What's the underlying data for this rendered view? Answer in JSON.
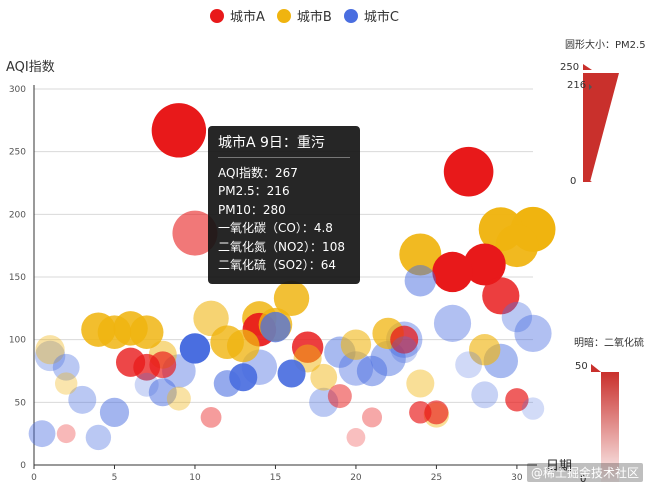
{
  "legend": {
    "items": [
      {
        "name": "城市A",
        "color": "#e8191a"
      },
      {
        "name": "城市B",
        "color": "#f0b40f"
      },
      {
        "name": "城市C",
        "color": "#4a6ee0"
      }
    ]
  },
  "tooltip": {
    "title": "城市A 9日：重污",
    "lines": [
      "AQI指数：267",
      "PM2.5：216",
      "PM10：280",
      "一氧化碳（CO）：4.8",
      "二氧化氮（NO2）：108",
      "二氧化硫（SO2）：64"
    ]
  },
  "visual_map_size": {
    "title": "圆形大小：PM2.5",
    "max_label": "250",
    "handle_label": "216",
    "min_label": "0"
  },
  "visual_map_color": {
    "title": "明暗：二氧化硫",
    "max_label": "50",
    "min_label": "0"
  },
  "watermark": "@稀土掘金技术社区",
  "chart_data": {
    "type": "scatter",
    "xlabel": "日期",
    "ylabel": "AQI指数",
    "xlim": [
      0,
      31
    ],
    "ylim": [
      0,
      300
    ],
    "x_ticks": [
      0,
      5,
      10,
      15,
      20,
      25,
      30
    ],
    "y_ticks": [
      0,
      50,
      100,
      150,
      200,
      250,
      300
    ],
    "size_encoding": {
      "field": "PM2.5",
      "range": [
        0,
        250
      ]
    },
    "color_encoding": {
      "field": "SO2",
      "range": [
        0,
        50
      ]
    },
    "series": [
      {
        "name": "城市A",
        "color": "#e8191a",
        "points": [
          {
            "x": 9,
            "y": 267,
            "pm25": 216,
            "so2": 64
          },
          {
            "x": 27,
            "y": 234,
            "pm25": 175,
            "so2": 60
          },
          {
            "x": 26,
            "y": 154,
            "pm25": 110,
            "so2": 50
          },
          {
            "x": 28,
            "y": 160,
            "pm25": 120,
            "so2": 55
          },
          {
            "x": 29,
            "y": 135,
            "pm25": 90,
            "so2": 40
          },
          {
            "x": 10,
            "y": 185,
            "pm25": 140,
            "so2": 25
          },
          {
            "x": 14,
            "y": 108,
            "pm25": 70,
            "so2": 45
          },
          {
            "x": 17,
            "y": 94,
            "pm25": 60,
            "so2": 40
          },
          {
            "x": 6,
            "y": 82,
            "pm25": 50,
            "so2": 38
          },
          {
            "x": 7,
            "y": 78,
            "pm25": 40,
            "so2": 35
          },
          {
            "x": 8,
            "y": 80,
            "pm25": 40,
            "so2": 30
          },
          {
            "x": 23,
            "y": 100,
            "pm25": 45,
            "so2": 35
          },
          {
            "x": 24,
            "y": 42,
            "pm25": 25,
            "so2": 30
          },
          {
            "x": 25,
            "y": 42,
            "pm25": 30,
            "so2": 28
          },
          {
            "x": 19,
            "y": 55,
            "pm25": 30,
            "so2": 20
          },
          {
            "x": 30,
            "y": 52,
            "pm25": 28,
            "so2": 32
          },
          {
            "x": 11,
            "y": 38,
            "pm25": 20,
            "so2": 15
          },
          {
            "x": 21,
            "y": 38,
            "pm25": 18,
            "so2": 12
          },
          {
            "x": 2,
            "y": 25,
            "pm25": 15,
            "so2": 8
          },
          {
            "x": 20,
            "y": 22,
            "pm25": 15,
            "so2": 6
          }
        ]
      },
      {
        "name": "城市B",
        "color": "#f0b40f",
        "points": [
          {
            "x": 24,
            "y": 168,
            "pm25": 120,
            "so2": 45
          },
          {
            "x": 29,
            "y": 188,
            "pm25": 135,
            "so2": 48
          },
          {
            "x": 30,
            "y": 175,
            "pm25": 125,
            "so2": 46
          },
          {
            "x": 31,
            "y": 188,
            "pm25": 140,
            "so2": 50
          },
          {
            "x": 16,
            "y": 133,
            "pm25": 80,
            "so2": 40
          },
          {
            "x": 4,
            "y": 108,
            "pm25": 75,
            "so2": 42
          },
          {
            "x": 5,
            "y": 106,
            "pm25": 70,
            "so2": 40
          },
          {
            "x": 6,
            "y": 109,
            "pm25": 75,
            "so2": 42
          },
          {
            "x": 7,
            "y": 106,
            "pm25": 70,
            "so2": 40
          },
          {
            "x": 11,
            "y": 117,
            "pm25": 80,
            "so2": 25
          },
          {
            "x": 14,
            "y": 117,
            "pm25": 75,
            "so2": 40
          },
          {
            "x": 15,
            "y": 112,
            "pm25": 70,
            "so2": 38
          },
          {
            "x": 12,
            "y": 98,
            "pm25": 70,
            "so2": 38
          },
          {
            "x": 13,
            "y": 95,
            "pm25": 65,
            "so2": 36
          },
          {
            "x": 20,
            "y": 96,
            "pm25": 55,
            "so2": 25
          },
          {
            "x": 22,
            "y": 105,
            "pm25": 60,
            "so2": 35
          },
          {
            "x": 28,
            "y": 92,
            "pm25": 60,
            "so2": 28
          },
          {
            "x": 1,
            "y": 92,
            "pm25": 50,
            "so2": 12
          },
          {
            "x": 8,
            "y": 88,
            "pm25": 45,
            "so2": 20
          },
          {
            "x": 17,
            "y": 85,
            "pm25": 45,
            "so2": 20
          },
          {
            "x": 18,
            "y": 70,
            "pm25": 40,
            "so2": 18
          },
          {
            "x": 24,
            "y": 65,
            "pm25": 45,
            "so2": 15
          },
          {
            "x": 9,
            "y": 53,
            "pm25": 30,
            "so2": 12
          },
          {
            "x": 25,
            "y": 40,
            "pm25": 35,
            "so2": 15
          },
          {
            "x": 2,
            "y": 65,
            "pm25": 25,
            "so2": 10
          }
        ]
      },
      {
        "name": "城市C",
        "color": "#4a6ee0",
        "points": [
          {
            "x": 10,
            "y": 93,
            "pm25": 55,
            "so2": 50
          },
          {
            "x": 13,
            "y": 70,
            "pm25": 45,
            "so2": 45
          },
          {
            "x": 16,
            "y": 73,
            "pm25": 45,
            "so2": 45
          },
          {
            "x": 15,
            "y": 110,
            "pm25": 55,
            "so2": 35
          },
          {
            "x": 24,
            "y": 147,
            "pm25": 60,
            "so2": 20
          },
          {
            "x": 26,
            "y": 113,
            "pm25": 90,
            "so2": 15
          },
          {
            "x": 31,
            "y": 105,
            "pm25": 90,
            "so2": 15
          },
          {
            "x": 30,
            "y": 118,
            "pm25": 55,
            "so2": 12
          },
          {
            "x": 23,
            "y": 100,
            "pm25": 85,
            "so2": 15
          },
          {
            "x": 29,
            "y": 83,
            "pm25": 75,
            "so2": 18
          },
          {
            "x": 20,
            "y": 77,
            "pm25": 75,
            "so2": 15
          },
          {
            "x": 22,
            "y": 85,
            "pm25": 80,
            "so2": 18
          },
          {
            "x": 19,
            "y": 90,
            "pm25": 60,
            "so2": 18
          },
          {
            "x": 18,
            "y": 50,
            "pm25": 50,
            "so2": 12
          },
          {
            "x": 14,
            "y": 78,
            "pm25": 80,
            "so2": 15
          },
          {
            "x": 9,
            "y": 75,
            "pm25": 70,
            "so2": 15
          },
          {
            "x": 8,
            "y": 58,
            "pm25": 45,
            "so2": 20
          },
          {
            "x": 5,
            "y": 42,
            "pm25": 50,
            "so2": 20
          },
          {
            "x": 3,
            "y": 52,
            "pm25": 45,
            "so2": 12
          },
          {
            "x": 1,
            "y": 87,
            "pm25": 55,
            "so2": 10
          },
          {
            "x": 2,
            "y": 78,
            "pm25": 40,
            "so2": 12
          },
          {
            "x": 12,
            "y": 65,
            "pm25": 40,
            "so2": 25
          },
          {
            "x": 21,
            "y": 75,
            "pm25": 55,
            "so2": 20
          },
          {
            "x": 0.5,
            "y": 25,
            "pm25": 40,
            "so2": 15
          },
          {
            "x": 4,
            "y": 22,
            "pm25": 35,
            "so2": 12
          },
          {
            "x": 28,
            "y": 56,
            "pm25": 40,
            "so2": 8
          },
          {
            "x": 27,
            "y": 80,
            "pm25": 40,
            "so2": 5
          },
          {
            "x": 7,
            "y": 64,
            "pm25": 30,
            "so2": 6
          },
          {
            "x": 23,
            "y": 92,
            "pm25": 40,
            "so2": 8
          },
          {
            "x": 31,
            "y": 45,
            "pm25": 25,
            "so2": 4
          }
        ]
      }
    ]
  }
}
